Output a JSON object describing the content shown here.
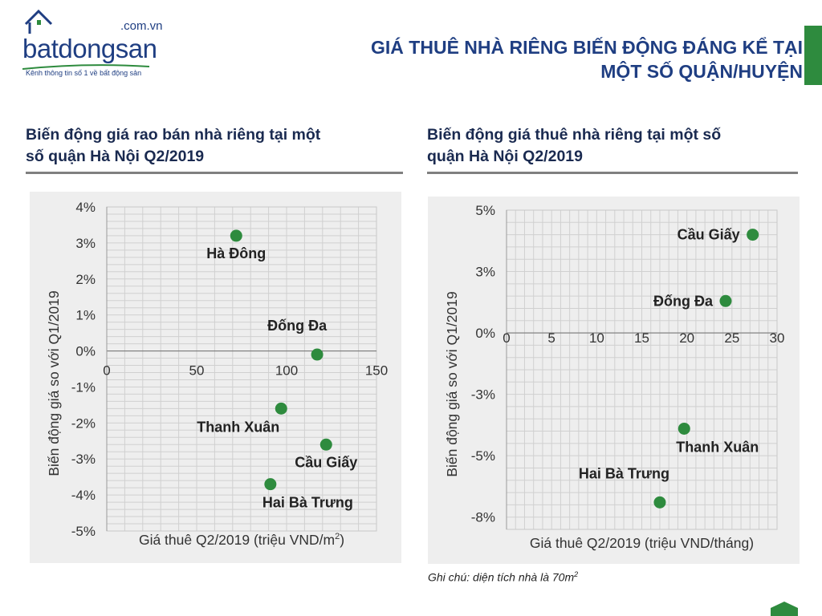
{
  "logo": {
    "domain": ".com.vn",
    "word": "batdongsan",
    "tagline": "Kênh thông tin số 1 về bất động sản"
  },
  "header": {
    "title_line1": "GIÁ THUÊ NHÀ RIÊNG BIẾN ĐỘNG ĐÁNG KỂ TẠI",
    "title_line2": "MỘT SỐ QUẬN/HUYỆN"
  },
  "note": {
    "text": "Ghi chú: diện tích nhà là 70m",
    "sup": "2"
  },
  "colors": {
    "marker": "#2e8b3e",
    "accent": "#2e8b3e",
    "brand": "#1f3e82"
  },
  "chart_data": [
    {
      "type": "scatter",
      "title_line1": "Biến động giá rao bán nhà riêng tại một",
      "title_line2": "số quận Hà Nội Q2/2019",
      "xlabel": "Giá thuê Q2/2019 (triệu VND/m",
      "xlabel_sup": "2",
      "xlabel_end": ")",
      "ylabel": "Biến động giá so với Q1/2019",
      "xlim": [
        0,
        150
      ],
      "ylim": [
        -5,
        4
      ],
      "xticks": [
        0,
        50,
        100,
        150
      ],
      "xtick_labels": [
        "0",
        "50",
        "100",
        "150"
      ],
      "yticks": [
        4,
        3,
        2,
        1,
        0,
        -1,
        -2,
        -3,
        -4,
        -5
      ],
      "ytick_labels": [
        "4%",
        "3%",
        "2%",
        "1%",
        "0%",
        "-1%",
        "-2%",
        "-3%",
        "-4%",
        "-5%"
      ],
      "grid": true,
      "points": [
        {
          "label": "Hà Đông",
          "x": 72,
          "y": 3.2,
          "label_pos": "below"
        },
        {
          "label": "Đống Đa",
          "x": 117,
          "y": -0.1,
          "label_pos": "above-left"
        },
        {
          "label": "Thanh Xuân",
          "x": 97,
          "y": -1.6,
          "label_pos": "below-left"
        },
        {
          "label": "Cầu Giấy",
          "x": 122,
          "y": -2.6,
          "label_pos": "below"
        },
        {
          "label": "Hai Bà Trưng",
          "x": 91,
          "y": -3.7,
          "label_pos": "below-right"
        }
      ]
    },
    {
      "type": "scatter",
      "title_line1": "Biến động giá thuê nhà riêng tại một số",
      "title_line2": "quận Hà Nội Q2/2019",
      "xlabel": "Giá thuê Q2/2019 (triệu VND/tháng)",
      "xlabel_sup": "",
      "xlabel_end": "",
      "ylabel": "Biến động giá so với Q1/2019",
      "xlim": [
        0,
        30
      ],
      "ylim": [
        -8,
        5
      ],
      "xticks": [
        0,
        5,
        10,
        15,
        20,
        25,
        30
      ],
      "xtick_labels": [
        "0",
        "5",
        "10",
        "15",
        "20",
        "25",
        "30"
      ],
      "yticks": [
        5,
        2.5,
        0,
        -2.5,
        -5,
        -7.5
      ],
      "ytick_labels": [
        "5%",
        "3%",
        "0%",
        "-3%",
        "-5%",
        "-8%"
      ],
      "grid": true,
      "points": [
        {
          "label": "Cầu Giấy",
          "x": 27.3,
          "y": 4.0,
          "label_pos": "left"
        },
        {
          "label": "Đống Đa",
          "x": 24.3,
          "y": 1.3,
          "label_pos": "left"
        },
        {
          "label": "Thanh Xuân",
          "x": 19.7,
          "y": -3.9,
          "label_pos": "below-right"
        },
        {
          "label": "Hai Bà Trưng",
          "x": 17.0,
          "y": -6.9,
          "label_pos": "above-left"
        }
      ]
    }
  ]
}
